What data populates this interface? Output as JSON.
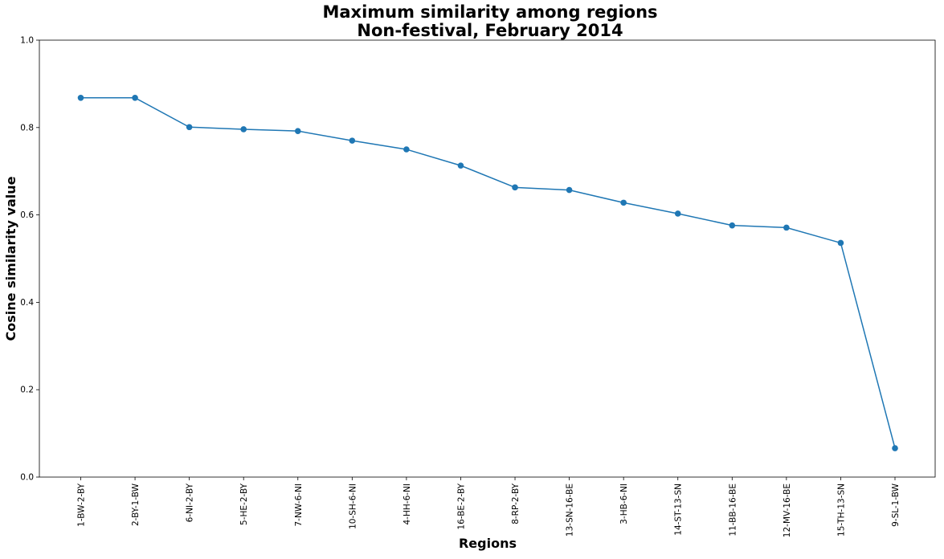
{
  "chart_data": {
    "type": "line",
    "title": "Maximum similarity among regions",
    "subtitle": "Non-festival, February 2014",
    "xlabel": "Regions",
    "ylabel": "Cosine similarity value",
    "ylim": [
      0.0,
      1.0
    ],
    "yticks": [
      "0.0",
      "0.2",
      "0.4",
      "0.6",
      "0.8",
      "1.0"
    ],
    "grid": false,
    "legend": "none",
    "marker": "circle",
    "series_color": "#1f77b4",
    "categories": [
      "1-BW-2-BY",
      "2-BY-1-BW",
      "6-NI-2-BY",
      "5-HE-2-BY",
      "7-NW-6-NI",
      "10-SH-6-NI",
      "4-HH-6-NI",
      "16-BE-2-BY",
      "8-RP-2-BY",
      "13-SN-16-BE",
      "3-HB-6-NI",
      "14-ST-13-SN",
      "11-BB-16-BE",
      "12-MV-16-BE",
      "15-TH-13-SN",
      "9-SL-1-BW"
    ],
    "values": [
      0.868,
      0.868,
      0.801,
      0.796,
      0.792,
      0.77,
      0.75,
      0.713,
      0.663,
      0.657,
      0.628,
      0.603,
      0.576,
      0.571,
      0.536,
      0.066
    ]
  }
}
